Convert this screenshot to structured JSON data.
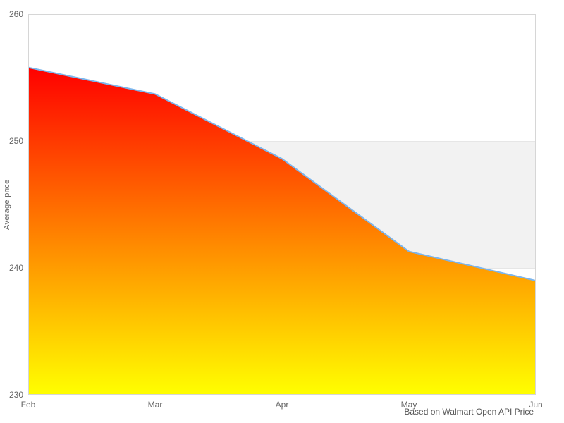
{
  "chart_data": {
    "type": "area",
    "categories": [
      "Feb",
      "Mar",
      "Apr",
      "May",
      "Jun"
    ],
    "values": [
      255.8,
      253.7,
      248.6,
      241.3,
      239.0
    ],
    "title": "",
    "xlabel": "",
    "ylabel": "Average price",
    "ylim": [
      230,
      260
    ],
    "y_ticks": [
      230,
      240,
      250,
      260
    ],
    "grid": "horizontal",
    "legend": "none",
    "caption": "Based on Walmart Open API Price",
    "colors": {
      "line": "#7cb5ec",
      "fill_top": "#ff0000",
      "fill_bottom": "#ffff00",
      "band": "#f2f2f2",
      "gridline": "#e6e6e6",
      "plot_border": "#d6d6d6",
      "label": "#666666",
      "caption": "#555555"
    },
    "band": {
      "from": 240,
      "to": 250
    }
  }
}
